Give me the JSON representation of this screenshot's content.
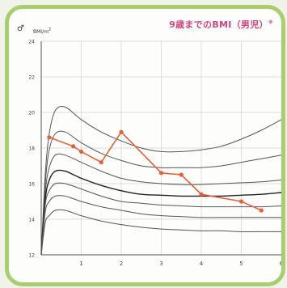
{
  "chart_data": {
    "type": "line",
    "title": "9歳までのBMI（男児）",
    "title_note": "※",
    "ylabel": "BMI",
    "ylabel_unit_sup": "2",
    "gender_symbol": "♂",
    "xlim": [
      0,
      6
    ],
    "ylim": [
      12,
      24
    ],
    "x_ticks": [
      1,
      2,
      3,
      4,
      5,
      6
    ],
    "y_ticks": [
      12,
      14,
      16,
      18,
      20,
      22,
      24
    ],
    "grid": true,
    "percentile_curves": [
      {
        "x": [
          0,
          0.1,
          0.2,
          0.35,
          0.6,
          1,
          1.5,
          2,
          2.5,
          3,
          3.5,
          4,
          4.5,
          5,
          5.5,
          6
        ],
        "y": [
          12,
          16.5,
          18.8,
          20.1,
          20.3,
          19.6,
          18.9,
          18.4,
          18.0,
          17.8,
          17.8,
          17.9,
          18.1,
          18.5,
          19.0,
          19.6
        ]
      },
      {
        "x": [
          0,
          0.1,
          0.2,
          0.35,
          0.6,
          1,
          1.5,
          2,
          2.5,
          3,
          3.5,
          4,
          4.5,
          5,
          5.5,
          6
        ],
        "y": [
          12,
          16.0,
          17.9,
          18.8,
          18.9,
          18.3,
          17.7,
          17.3,
          17.0,
          16.9,
          16.9,
          16.9,
          17.0,
          17.2,
          17.4,
          17.6
        ]
      },
      {
        "x": [
          0,
          0.1,
          0.2,
          0.35,
          0.6,
          1,
          1.5,
          2,
          2.5,
          3,
          3.5,
          4,
          4.5,
          5,
          5.5,
          6
        ],
        "y": [
          12,
          15.5,
          16.9,
          17.6,
          17.6,
          17.2,
          16.7,
          16.3,
          16.1,
          16.0,
          15.95,
          15.95,
          16.0,
          16.05,
          16.1,
          16.2
        ]
      },
      {
        "x": [
          0,
          0.1,
          0.2,
          0.35,
          0.6,
          1,
          1.5,
          2,
          2.5,
          3,
          3.5,
          4,
          4.5,
          5,
          5.5,
          6
        ],
        "y": [
          12,
          15.1,
          16.2,
          16.7,
          16.7,
          16.3,
          15.9,
          15.6,
          15.4,
          15.35,
          15.3,
          15.3,
          15.3,
          15.35,
          15.4,
          15.5
        ]
      },
      {
        "x": [
          0,
          0.1,
          0.2,
          0.35,
          0.6,
          1,
          1.5,
          2,
          2.5,
          3,
          3.5,
          4,
          4.5,
          5,
          5.5,
          6
        ],
        "y": [
          12,
          14.8,
          15.6,
          16.0,
          16.0,
          15.7,
          15.3,
          15.0,
          14.9,
          14.8,
          14.75,
          14.7,
          14.7,
          14.7,
          14.7,
          14.75
        ]
      },
      {
        "x": [
          0,
          0.1,
          0.2,
          0.35,
          0.6,
          1,
          1.5,
          2,
          2.5,
          3,
          3.5,
          4,
          4.5,
          5,
          5.5,
          6
        ],
        "y": [
          12,
          14.4,
          15.0,
          15.3,
          15.3,
          15.0,
          14.7,
          14.5,
          14.3,
          14.2,
          14.15,
          14.1,
          14.1,
          14.1,
          14.1,
          14.1
        ]
      },
      {
        "x": [
          0,
          0.1,
          0.2,
          0.35,
          0.6,
          1,
          1.5,
          2,
          2.5,
          3,
          3.5,
          4,
          4.5,
          5,
          5.5,
          6
        ],
        "y": [
          12,
          13.8,
          14.2,
          14.5,
          14.5,
          14.2,
          13.9,
          13.7,
          13.55,
          13.45,
          13.4,
          13.35,
          13.35,
          13.3,
          13.3,
          13.3
        ]
      }
    ],
    "series": [
      {
        "color": "#e0623a",
        "x": [
          0.2,
          0.8,
          1.0,
          1.5,
          2.0,
          3.0,
          3.5,
          4.0,
          5.0,
          5.5
        ],
        "y": [
          18.6,
          18.1,
          17.8,
          17.2,
          18.9,
          16.6,
          16.5,
          15.4,
          15.0,
          14.5
        ]
      }
    ]
  }
}
